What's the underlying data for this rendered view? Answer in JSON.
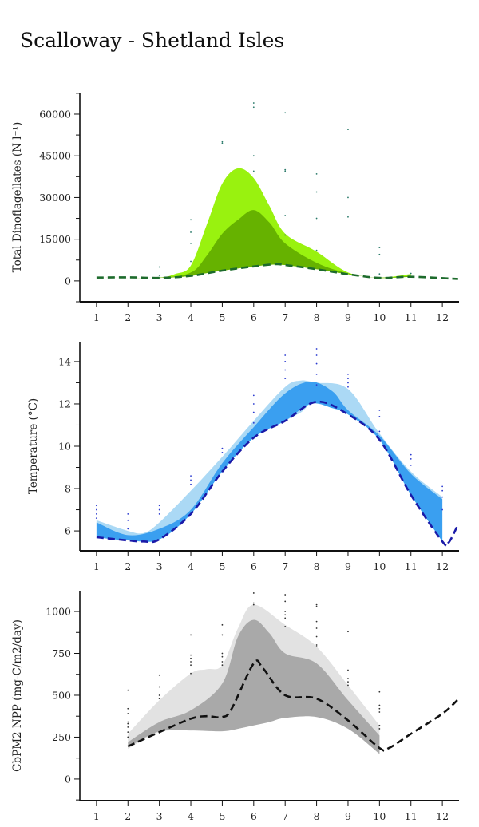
{
  "title": "Scalloway - Shetland Isles",
  "chart_data": [
    {
      "type": "area",
      "title": "",
      "ylabel": "Total Dinoflagellates (N l⁻¹)",
      "xlabel": "",
      "xlim": [
        0.47,
        12.53
      ],
      "ylim": [
        -7500,
        67750
      ],
      "xticks": [
        "1",
        "2",
        "3",
        "4",
        "5",
        "6",
        "7",
        "8",
        "9",
        "10",
        "11",
        "12"
      ],
      "yticks": [
        0,
        15000,
        30000,
        45000,
        60000
      ],
      "ytick_labels": [
        "0",
        "15000",
        "30000",
        "45000",
        "60000"
      ],
      "colors": {
        "outer": "#99f20f",
        "inner": "#66b200",
        "line": "#1d6b2c",
        "points": "#2a7a6a"
      },
      "outer_band": {
        "x": [
          1,
          2,
          3,
          3.5,
          4,
          4.5,
          5,
          5.5,
          6,
          6.5,
          7,
          8,
          9,
          10,
          11
        ],
        "upper": [
          1200,
          1300,
          1200,
          2500,
          5500,
          20000,
          35000,
          40500,
          37000,
          27000,
          17000,
          10500,
          3000,
          1200,
          2500
        ],
        "lower": [
          1200,
          1300,
          1100,
          1300,
          1800,
          2800,
          3700,
          4500,
          5200,
          5800,
          5700,
          4200,
          2400,
          1100,
          1500
        ]
      },
      "inner_band": {
        "x": [
          1,
          3,
          4,
          4.5,
          5,
          5.5,
          6,
          6.5,
          7,
          8,
          9,
          10,
          11
        ],
        "upper": [
          1200,
          1200,
          3000,
          9000,
          17000,
          22000,
          25500,
          21000,
          13500,
          6500,
          2700,
          1200,
          1800
        ],
        "lower": [
          1200,
          1100,
          1800,
          2800,
          3700,
          4500,
          5200,
          5800,
          5700,
          4200,
          2400,
          1100,
          1500
        ]
      },
      "mean_line": {
        "x": [
          1,
          2,
          3,
          4,
          5,
          6,
          6.7,
          7,
          8,
          9,
          10,
          11,
          12.5
        ],
        "y": [
          1200,
          1300,
          1100,
          1800,
          3700,
          5200,
          6000,
          5700,
          4200,
          2400,
          1100,
          1500,
          700
        ]
      },
      "points": {
        "x": [
          3,
          3,
          4,
          4,
          4,
          4,
          5,
          5,
          6,
          6,
          6,
          6,
          7,
          7,
          7,
          7,
          7,
          8,
          8,
          8,
          8,
          9,
          9,
          9,
          10,
          10,
          10,
          11
        ],
        "y": [
          5000,
          2000,
          22000,
          17500,
          13500,
          7000,
          50000,
          49500,
          64000,
          62500,
          45000,
          39500,
          60500,
          40000,
          39500,
          23500,
          16500,
          38500,
          32000,
          22500,
          11000,
          54500,
          30000,
          23000,
          12000,
          9500,
          2500,
          2700
        ]
      }
    },
    {
      "type": "area",
      "title": "",
      "ylabel": "Temperature (°C)",
      "xlabel": "",
      "xlim": [
        0.47,
        12.53
      ],
      "ylim": [
        5.06,
        14.94
      ],
      "xticks": [
        "1",
        "2",
        "3",
        "4",
        "5",
        "6",
        "7",
        "8",
        "9",
        "10",
        "11",
        "12"
      ],
      "yticks": [
        6,
        8,
        10,
        12,
        14
      ],
      "ytick_labels": [
        "6",
        "8",
        "10",
        "12",
        "14"
      ],
      "colors": {
        "outer": "#abd9f5",
        "inner": "#3a9ff0",
        "line": "#1a1aa8",
        "points": "#2a3ad0"
      },
      "outer_band": {
        "x": [
          1,
          2,
          2.5,
          3,
          4,
          5,
          6,
          7,
          7.5,
          8,
          9,
          10,
          11,
          12
        ],
        "upper": [
          6.5,
          6.0,
          5.9,
          6.4,
          7.9,
          9.5,
          11.2,
          12.8,
          13.1,
          13.0,
          12.7,
          10.6,
          8.8,
          7.6
        ],
        "lower": [
          5.7,
          5.55,
          5.5,
          5.6,
          6.8,
          8.8,
          10.4,
          11.2,
          11.6,
          12.1,
          11.5,
          10.3,
          7.7,
          5.5
        ]
      },
      "inner_band": {
        "x": [
          1,
          2,
          3,
          4,
          5,
          6,
          7,
          7.8,
          8.5,
          9,
          10,
          11,
          12
        ],
        "upper": [
          6.4,
          5.8,
          6.1,
          7.0,
          9.2,
          10.9,
          12.5,
          13.05,
          12.6,
          11.7,
          10.5,
          8.7,
          7.5
        ],
        "lower": [
          5.7,
          5.55,
          5.6,
          6.8,
          8.8,
          10.4,
          11.2,
          12.0,
          11.8,
          11.5,
          10.3,
          7.7,
          5.5
        ]
      },
      "mean_line": {
        "x": [
          1,
          2,
          2.5,
          3,
          4,
          5,
          6,
          7,
          8,
          9,
          10,
          11,
          12,
          12.2,
          12.5
        ],
        "y": [
          5.7,
          5.55,
          5.5,
          5.6,
          6.8,
          8.8,
          10.4,
          11.2,
          12.1,
          11.5,
          10.3,
          7.7,
          5.5,
          5.45,
          6.3
        ]
      },
      "points": {
        "x": [
          1,
          1,
          1,
          1,
          2,
          2,
          2,
          3,
          3,
          3,
          4,
          4,
          4,
          5,
          5,
          6,
          6,
          6,
          6,
          7,
          7,
          7,
          7,
          8,
          8,
          8,
          8,
          8,
          9,
          9,
          9,
          9,
          10,
          10,
          10,
          11,
          11,
          11,
          12,
          12,
          12,
          12
        ],
        "y": [
          7.2,
          7.0,
          6.8,
          6.6,
          6.8,
          6.5,
          6.1,
          7.2,
          7.0,
          6.8,
          8.6,
          8.4,
          8.2,
          9.9,
          9.7,
          12.4,
          12.0,
          11.6,
          11.1,
          14.3,
          14.0,
          13.6,
          13.2,
          14.6,
          14.3,
          13.9,
          13.4,
          12.9,
          13.4,
          13.2,
          13.0,
          12.8,
          11.7,
          11.4,
          10.7,
          9.6,
          9.4,
          9.1,
          8.1,
          7.9,
          7.6,
          7.0
        ]
      }
    },
    {
      "type": "area",
      "title": "",
      "ylabel": "CbPM2 NPP (mg-C/m2/day)",
      "xlabel": "",
      "xlim": [
        0.47,
        12.53
      ],
      "ylim": [
        -129,
        1124
      ],
      "xticks": [
        "1",
        "2",
        "3",
        "4",
        "5",
        "6",
        "7",
        "8",
        "9",
        "10",
        "11",
        "12"
      ],
      "yticks": [
        0,
        250,
        500,
        750,
        1000
      ],
      "ytick_labels": [
        "0",
        "250",
        "500",
        "750",
        "1000"
      ],
      "colors": {
        "outer": "#e2e2e2",
        "inner": "#a9a9a9",
        "line": "#111111",
        "points": "#333333"
      },
      "outer_band": {
        "x": [
          2,
          3,
          4,
          4.5,
          5,
          5.5,
          6,
          7,
          8,
          9,
          10
        ],
        "upper": [
          270,
          470,
          630,
          655,
          680,
          900,
          1040,
          920,
          790,
          560,
          320
        ],
        "lower": [
          180,
          280,
          290,
          288,
          285,
          300,
          320,
          365,
          375,
          310,
          150
        ]
      },
      "inner_band": {
        "x": [
          2,
          3,
          4,
          5,
          5.5,
          6,
          6.5,
          7,
          8,
          9,
          10
        ],
        "upper": [
          220,
          340,
          410,
          570,
          850,
          950,
          870,
          750,
          690,
          470,
          260
        ],
        "lower": [
          190,
          285,
          290,
          285,
          300,
          320,
          340,
          365,
          370,
          300,
          150
        ]
      },
      "mean_line": {
        "x": [
          2,
          3,
          4,
          4.5,
          5,
          5.3,
          6,
          6.3,
          7,
          8,
          9,
          10,
          10.3,
          11,
          12,
          12.5
        ],
        "y": [
          195,
          280,
          360,
          375,
          370,
          420,
          690,
          660,
          500,
          480,
          350,
          185,
          185,
          270,
          390,
          475
        ]
      },
      "points": {
        "x": [
          2,
          2,
          2,
          2,
          2,
          2,
          2,
          2,
          3,
          3,
          3,
          3,
          4,
          4,
          4,
          4,
          4,
          4,
          5,
          5,
          5,
          5,
          5,
          5,
          6,
          6,
          6,
          7,
          7,
          7,
          7,
          7,
          7,
          8,
          8,
          8,
          8,
          8,
          8,
          8,
          9,
          9,
          9,
          9,
          9,
          10,
          10,
          10,
          10,
          10,
          10
        ],
        "y": [
          530,
          420,
          390,
          340,
          330,
          310,
          280,
          250,
          620,
          550,
          500,
          480,
          860,
          740,
          720,
          700,
          680,
          630,
          920,
          860,
          750,
          730,
          700,
          680,
          1110,
          1050,
          1040,
          1100,
          1060,
          1000,
          980,
          960,
          910,
          1040,
          1030,
          940,
          900,
          850,
          800,
          790,
          880,
          650,
          600,
          580,
          560,
          520,
          440,
          420,
          400,
          320,
          300
        ]
      }
    }
  ]
}
